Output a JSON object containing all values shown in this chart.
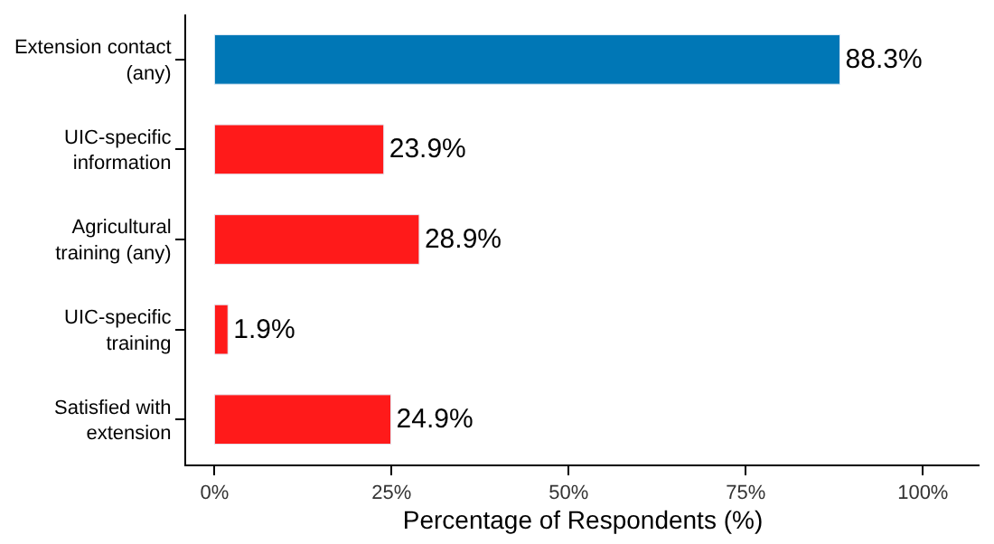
{
  "chart_data": {
    "type": "bar",
    "orientation": "horizontal",
    "xlabel": "Percentage of Respondents (%)",
    "categories": [
      "Extension contact\n(any)",
      "UIC-specific\ninformation",
      "Agricultural\ntraining (any)",
      "UIC-specific\ntraining",
      "Satisfied with\nextension"
    ],
    "values": [
      88.3,
      23.9,
      28.9,
      1.9,
      24.9
    ],
    "colors": [
      "#0077b6",
      "#ff1a1a",
      "#ff1a1a",
      "#ff1a1a",
      "#ff1a1a"
    ],
    "value_labels": [
      "88.3%",
      "23.9%",
      "28.9%",
      "1.9%",
      "24.9%"
    ],
    "xlim": [
      -4,
      108
    ],
    "xticks": [
      {
        "value": 0,
        "label": "0%"
      },
      {
        "value": 25,
        "label": "25%"
      },
      {
        "value": 50,
        "label": "50%"
      },
      {
        "value": 75,
        "label": "75%"
      },
      {
        "value": 100,
        "label": "100%"
      }
    ]
  }
}
